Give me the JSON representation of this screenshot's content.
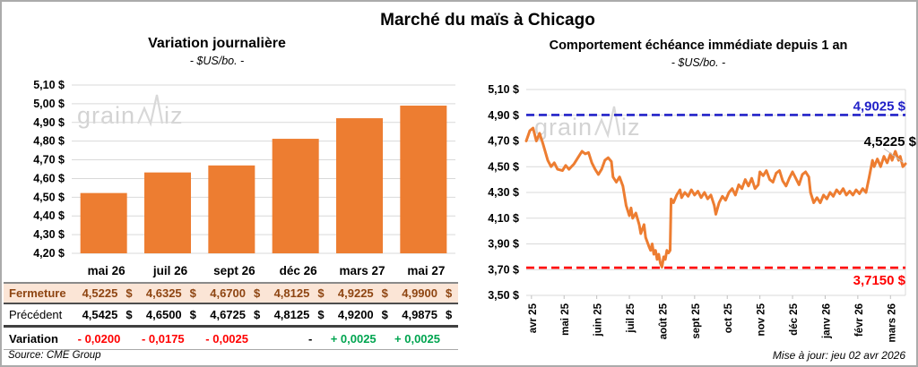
{
  "page": {
    "title": "Marché du maïs à Chicago",
    "source": "Source: CME Group",
    "updated": "Mise à jour: jeu 02 avr 2026",
    "watermark_prefix": "grain",
    "watermark_suffix": "iz"
  },
  "colors": {
    "series_orange": "#ED7D31",
    "resistance_blue": "#2121C8",
    "support_red": "#FF0000",
    "positive_green": "#00A550",
    "fermeture_brown": "#8E4512",
    "fermeture_bg": "#FBE5D6",
    "grid": "#D9D9D9"
  },
  "left_table": {
    "currency_symbol": "$",
    "columns": [
      "mai 26",
      "juil 26",
      "sept 26",
      "déc 26",
      "mars 27",
      "mai 27"
    ],
    "rows": [
      {
        "label": "Fermeture",
        "values": [
          "4,5225",
          "4,6325",
          "4,6700",
          "4,8125",
          "4,9225",
          "4,9900"
        ]
      },
      {
        "label": "Précédent",
        "values": [
          "4,5425",
          "4,6500",
          "4,6725",
          "4,8125",
          "4,9200",
          "4,9875"
        ]
      },
      {
        "label": "Variation",
        "values": [
          "- 0,0200",
          "- 0,0175",
          "- 0,0025",
          "-",
          "+ 0,0025",
          "+ 0,0025"
        ]
      }
    ]
  },
  "chart_data": [
    {
      "type": "bar",
      "title": "Variation journalière",
      "subtitle": "- $US/bo. -",
      "categories": [
        "mai 26",
        "juil 26",
        "sept 26",
        "déc 26",
        "mars 27",
        "mai 27"
      ],
      "values": [
        4.5225,
        4.6325,
        4.67,
        4.8125,
        4.9225,
        4.99
      ],
      "ylim": [
        4.2,
        5.1
      ],
      "ytick_step": 0.1,
      "ytick_labels": [
        "5,10 $",
        "5,00 $",
        "4,90 $",
        "4,80 $",
        "4,70 $",
        "4,60 $",
        "4,50 $",
        "4,40 $",
        "4,30 $",
        "4,20 $"
      ],
      "grid": true,
      "bar_color": "#ED7D31"
    },
    {
      "type": "line",
      "title": "Comportement échéance immédiate depuis 1 an",
      "subtitle": "- $US/bo. -",
      "x_labels": [
        "avr 25",
        "mai 25",
        "juin 25",
        "juil 25",
        "août 25",
        "sept 25",
        "oct 25",
        "nov 25",
        "déc 25",
        "janv 26",
        "févr 26",
        "mars 26"
      ],
      "x_domain": [
        -0.16,
        11.46
      ],
      "ylim": [
        3.5,
        5.1
      ],
      "ytick_step": 0.2,
      "ytick_labels": [
        "5,10 $",
        "4,90 $",
        "4,70 $",
        "4,50 $",
        "4,30 $",
        "4,10 $",
        "3,90 $",
        "3,70 $",
        "3,50 $"
      ],
      "grid": true,
      "line_color": "#ED7D31",
      "resistance": {
        "value": 4.9025,
        "label": "4,9025 $",
        "color": "#2121C8"
      },
      "support": {
        "value": 3.715,
        "label": "3,7150 $",
        "color": "#FF0000"
      },
      "last_value": 4.5225,
      "last_label": "4,5225 $",
      "points": [
        [
          -0.16,
          4.7
        ],
        [
          -0.05,
          4.78
        ],
        [
          0.05,
          4.8
        ],
        [
          0.15,
          4.7
        ],
        [
          0.25,
          4.76
        ],
        [
          0.35,
          4.68
        ],
        [
          0.5,
          4.55
        ],
        [
          0.6,
          4.5
        ],
        [
          0.7,
          4.53
        ],
        [
          0.8,
          4.48
        ],
        [
          0.95,
          4.47
        ],
        [
          1.05,
          4.51
        ],
        [
          1.15,
          4.48
        ],
        [
          1.3,
          4.52
        ],
        [
          1.45,
          4.58
        ],
        [
          1.55,
          4.62
        ],
        [
          1.65,
          4.6
        ],
        [
          1.75,
          4.61
        ],
        [
          1.85,
          4.53
        ],
        [
          1.95,
          4.48
        ],
        [
          2.05,
          4.44
        ],
        [
          2.15,
          4.48
        ],
        [
          2.25,
          4.55
        ],
        [
          2.35,
          4.57
        ],
        [
          2.45,
          4.54
        ],
        [
          2.5,
          4.42
        ],
        [
          2.6,
          4.38
        ],
        [
          2.7,
          4.42
        ],
        [
          2.8,
          4.35
        ],
        [
          2.9,
          4.2
        ],
        [
          3.0,
          4.12
        ],
        [
          3.05,
          4.18
        ],
        [
          3.1,
          4.1
        ],
        [
          3.2,
          4.14
        ],
        [
          3.3,
          4.05
        ],
        [
          3.35,
          3.98
        ],
        [
          3.45,
          4.05
        ],
        [
          3.5,
          3.95
        ],
        [
          3.6,
          3.88
        ],
        [
          3.65,
          3.85
        ],
        [
          3.7,
          3.9
        ],
        [
          3.75,
          3.82
        ],
        [
          3.8,
          3.85
        ],
        [
          3.85,
          3.78
        ],
        [
          3.9,
          3.82
        ],
        [
          3.95,
          3.75
        ],
        [
          4.0,
          3.72
        ],
        [
          4.05,
          3.8
        ],
        [
          4.1,
          3.78
        ],
        [
          4.15,
          3.85
        ],
        [
          4.2,
          3.83
        ],
        [
          4.25,
          3.85
        ],
        [
          4.28,
          4.25
        ],
        [
          4.35,
          4.22
        ],
        [
          4.45,
          4.28
        ],
        [
          4.55,
          4.32
        ],
        [
          4.6,
          4.26
        ],
        [
          4.7,
          4.3
        ],
        [
          4.8,
          4.27
        ],
        [
          4.9,
          4.32
        ],
        [
          5.0,
          4.28
        ],
        [
          5.1,
          4.31
        ],
        [
          5.2,
          4.26
        ],
        [
          5.3,
          4.3
        ],
        [
          5.4,
          4.25
        ],
        [
          5.5,
          4.28
        ],
        [
          5.6,
          4.2
        ],
        [
          5.65,
          4.13
        ],
        [
          5.75,
          4.22
        ],
        [
          5.85,
          4.27
        ],
        [
          5.95,
          4.24
        ],
        [
          6.05,
          4.3
        ],
        [
          6.15,
          4.33
        ],
        [
          6.25,
          4.28
        ],
        [
          6.35,
          4.36
        ],
        [
          6.45,
          4.33
        ],
        [
          6.55,
          4.4
        ],
        [
          6.65,
          4.35
        ],
        [
          6.75,
          4.41
        ],
        [
          6.85,
          4.33
        ],
        [
          6.95,
          4.36
        ],
        [
          7.0,
          4.46
        ],
        [
          7.1,
          4.43
        ],
        [
          7.2,
          4.47
        ],
        [
          7.3,
          4.4
        ],
        [
          7.4,
          4.38
        ],
        [
          7.5,
          4.45
        ],
        [
          7.6,
          4.47
        ],
        [
          7.7,
          4.39
        ],
        [
          7.8,
          4.35
        ],
        [
          7.9,
          4.41
        ],
        [
          8.0,
          4.46
        ],
        [
          8.1,
          4.41
        ],
        [
          8.2,
          4.36
        ],
        [
          8.3,
          4.44
        ],
        [
          8.4,
          4.46
        ],
        [
          8.5,
          4.42
        ],
        [
          8.55,
          4.3
        ],
        [
          8.65,
          4.22
        ],
        [
          8.75,
          4.26
        ],
        [
          8.85,
          4.22
        ],
        [
          8.95,
          4.28
        ],
        [
          9.05,
          4.25
        ],
        [
          9.15,
          4.3
        ],
        [
          9.25,
          4.27
        ],
        [
          9.35,
          4.32
        ],
        [
          9.45,
          4.29
        ],
        [
          9.55,
          4.33
        ],
        [
          9.65,
          4.28
        ],
        [
          9.75,
          4.31
        ],
        [
          9.85,
          4.28
        ],
        [
          9.95,
          4.32
        ],
        [
          10.05,
          4.29
        ],
        [
          10.15,
          4.33
        ],
        [
          10.25,
          4.3
        ],
        [
          10.35,
          4.42
        ],
        [
          10.45,
          4.55
        ],
        [
          10.5,
          4.5
        ],
        [
          10.6,
          4.56
        ],
        [
          10.7,
          4.5
        ],
        [
          10.8,
          4.58
        ],
        [
          10.9,
          4.53
        ],
        [
          11.0,
          4.6
        ],
        [
          11.05,
          4.55
        ],
        [
          11.15,
          4.62
        ],
        [
          11.25,
          4.55
        ],
        [
          11.3,
          4.58
        ],
        [
          11.38,
          4.5
        ],
        [
          11.46,
          4.5225
        ]
      ]
    }
  ]
}
